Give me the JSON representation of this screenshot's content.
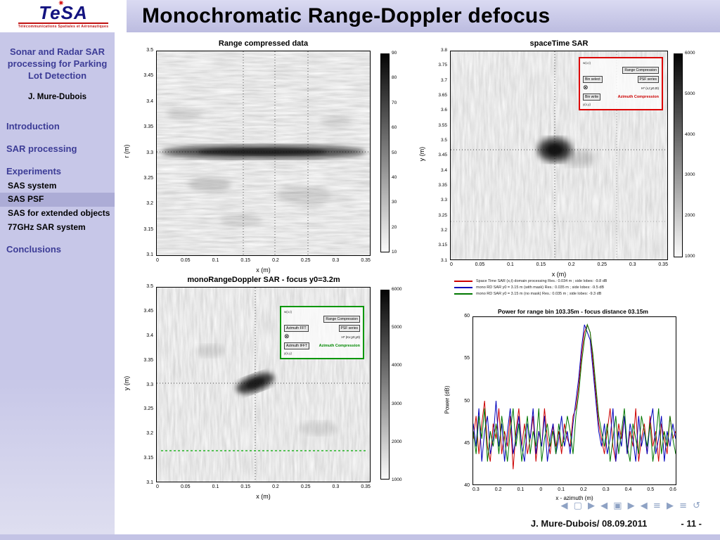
{
  "header": {
    "title": "Monochromatic Range-Doppler defocus"
  },
  "logo": {
    "name": "TeSA",
    "star": "✷",
    "tagline": "Télécommunications Spatiales et Aéronautiques"
  },
  "icons": {
    "otimes": "⊗",
    "arrow_down": "↓"
  },
  "sidebar": {
    "presentation_title": "Sonar and Radar SAR processing for Parking Lot Detection",
    "author": "J. Mure-Dubois",
    "nav": [
      {
        "label": "Introduction",
        "level": 1,
        "active": false
      },
      {
        "label": "SAR processing",
        "level": 1,
        "active": false
      },
      {
        "label": "Experiments",
        "level": 1,
        "active": false
      },
      {
        "label": "SAS system",
        "level": 2,
        "active": false
      },
      {
        "label": "SAS PSF",
        "level": 2,
        "active": true
      },
      {
        "label": "SAS for extended objects",
        "level": 2,
        "active": false
      },
      {
        "label": "77GHz SAR system",
        "level": 2,
        "active": false
      },
      {
        "label": "Conclusions",
        "level": 1,
        "active": false
      }
    ]
  },
  "footer": {
    "author_date": "J. Mure-Dubois/ 08.09.2011",
    "page": "- 11 -",
    "nav_symbols": "◀ ▢ ▶ ◀ ▣ ▶ ◀ ≡ ▶ ≡ ↺"
  },
  "plots": {
    "p1": {
      "title": "Range compressed data",
      "xlabel": "x (m)",
      "ylabel": "r (m)",
      "x_ticks": [
        "0",
        "0.05",
        "0.1",
        "0.15",
        "0.2",
        "0.25",
        "0.3",
        "0.35"
      ],
      "y_ticks": [
        "3.5",
        "3.45",
        "3.4",
        "3.35",
        "3.3",
        "3.25",
        "3.2",
        "3.15",
        "3.1"
      ],
      "cbar_ticks": [
        "90",
        "80",
        "70",
        "60",
        "50",
        "40",
        "30",
        "20",
        "10"
      ]
    },
    "p2": {
      "title": "spaceTime SAR",
      "xlabel": "x (m)",
      "ylabel": "y (m)",
      "x_ticks": [
        "0",
        "0.05",
        "0.1",
        "0.15",
        "0.2",
        "0.25",
        "0.3",
        "0.35"
      ],
      "y_ticks": [
        "3.8",
        "3.75",
        "3.7",
        "3.65",
        "3.6",
        "3.55",
        "3.5",
        "3.45",
        "3.4",
        "3.35",
        "3.3",
        "3.25",
        "3.2",
        "3.15",
        "3.1"
      ],
      "cbar_ticks": [
        "6000",
        "5000",
        "4000",
        "3000",
        "2000",
        "1000"
      ],
      "inset": {
        "input_label": "w(x,t)",
        "blocks": [
          "Range Compression",
          "Bin select",
          "PSF series",
          "H* (x,t;y0,t0)",
          "Bin write",
          "Azimuth Compression"
        ],
        "output_label": "y(x,y)"
      }
    },
    "p3": {
      "title": "monoRangeDoppler SAR - focus y0=3.2m",
      "xlabel": "x (m)",
      "ylabel": "y (m)",
      "x_ticks": [
        "0",
        "0.05",
        "0.1",
        "0.15",
        "0.2",
        "0.25",
        "0.3",
        "0.35"
      ],
      "y_ticks": [
        "3.5",
        "3.45",
        "3.4",
        "3.35",
        "3.3",
        "3.25",
        "3.2",
        "3.15",
        "3.1"
      ],
      "cbar_ticks": [
        "6000",
        "5000",
        "4000",
        "3000",
        "2000",
        "1000"
      ],
      "inset": {
        "input_label": "w(x,t)",
        "blocks": [
          "Range Compression",
          "Azimuth FFT",
          "PSF series",
          "H* (Kx;y0,y0)",
          "Azimuth IFFT",
          "Azimuth Compression"
        ],
        "output_label": "y(x,y)"
      }
    },
    "p4": {
      "title": "Power for range bin 103.35m - focus distance 03.15m",
      "xlabel": "x - azimuth (m)",
      "ylabel": "Power (dB)",
      "x_ticks": [
        "0.3",
        "0.2",
        "0.1",
        "0",
        "0.1",
        "0.2",
        "0.3",
        "0.4",
        "0.5",
        "0.6"
      ],
      "y_ticks": [
        "60",
        "55",
        "50",
        "45",
        "40"
      ],
      "legend": [
        {
          "color": "#cc0000",
          "text": "Space Time SAR (x,t) domain processing    Res.: 0.034 m ; side lobes: -9.8 dB"
        },
        {
          "color": "#0000bb",
          "text": "mono RD SAR y0 = 3.15 m (with mask)    Res.: 0.035 m ; side lobes: -9.5 dB"
        },
        {
          "color": "#007700",
          "text": "mono RD SAR y0 = 3.15 m (no mask)    Res.: 0.035 m ; side lobes: -9.3 dB"
        }
      ]
    }
  },
  "chart_data": [
    {
      "type": "heatmap",
      "title": "Range compressed data",
      "xlabel": "x (m)",
      "ylabel": "r (m)",
      "xlim": [
        0,
        0.35
      ],
      "ylim": [
        3.1,
        3.5
      ],
      "colormap": "gray reversed (dark = high)",
      "colorbar_ticks": [
        90,
        80,
        70,
        60,
        50,
        40,
        30,
        20,
        10
      ],
      "feature": "dark horizontal return band at r ≈ 3.3 m spanning the full x range over light speckle noise"
    },
    {
      "type": "heatmap",
      "title": "spaceTime SAR",
      "xlabel": "x (m)",
      "ylabel": "y (m)",
      "xlim": [
        0,
        0.35
      ],
      "ylim": [
        3.1,
        3.8
      ],
      "colormap": "gray reversed (dark = high)",
      "colorbar_ticks": [
        6000,
        5000,
        4000,
        3000,
        2000,
        1000
      ],
      "feature": "focused point target at x ≈ 0.15 m, y ≈ 3.45 m with dotted crosshair"
    },
    {
      "type": "heatmap",
      "title": "monoRangeDoppler SAR - focus y0=3.2m",
      "xlabel": "x (m)",
      "ylabel": "y (m)",
      "xlim": [
        0,
        0.35
      ],
      "ylim": [
        3.1,
        3.5
      ],
      "colormap": "gray reversed (dark = high)",
      "colorbar_ticks": [
        6000,
        5000,
        4000,
        3000,
        2000,
        1000
      ],
      "feature": "defocused diagonally smeared target at x ≈ 0.15 m, y ≈ 3.3 m; green dashed marker line near y = 3.15"
    },
    {
      "type": "line",
      "title": "Power for range bin 103.35m - focus distance 03.15m",
      "xlabel": "x - azimuth (m)",
      "ylabel": "Power (dB)",
      "ylim": [
        40,
        62
      ],
      "x_tick_labels": [
        "0.3",
        "0.2",
        "0.1",
        "0",
        "0.1",
        "0.2",
        "0.3",
        "0.4",
        "0.5",
        "0.6"
      ],
      "y_tick_labels": [
        60,
        55,
        50,
        45,
        40
      ],
      "grid": false,
      "legend_position": "above plot",
      "series": [
        {
          "name": "Space Time SAR",
          "color": "#cc0000",
          "values": [
            46,
            49,
            44,
            48,
            51,
            45,
            43,
            48,
            46,
            50,
            44,
            47,
            45,
            49,
            42,
            47,
            50,
            45,
            48,
            44,
            46,
            49,
            43,
            47,
            45,
            50,
            46,
            44,
            48,
            45,
            47,
            44,
            48,
            46,
            45,
            49,
            50,
            53,
            57,
            60,
            61,
            60,
            56,
            52,
            48,
            46,
            44,
            47,
            50,
            45,
            43,
            48,
            46,
            49,
            44,
            47,
            45,
            50,
            43,
            46,
            48,
            44,
            49,
            45,
            47,
            43,
            48,
            46,
            44,
            49,
            46,
            47
          ]
        },
        {
          "name": "mono RD SAR with mask",
          "color": "#0000bb",
          "values": [
            48,
            45,
            50,
            43,
            47,
            49,
            44,
            46,
            51,
            45,
            48,
            43,
            47,
            50,
            44,
            46,
            49,
            45,
            43,
            48,
            46,
            50,
            44,
            47,
            45,
            49,
            43,
            46,
            48,
            44,
            46,
            49,
            45,
            47,
            44,
            48,
            51,
            54,
            58,
            61,
            60,
            59,
            55,
            51,
            47,
            45,
            48,
            44,
            46,
            50,
            43,
            47,
            45,
            49,
            44,
            48,
            46,
            43,
            49,
            45,
            47,
            44,
            48,
            50,
            44,
            46,
            49,
            43,
            47,
            45,
            48,
            46
          ]
        },
        {
          "name": "mono RD SAR no mask",
          "color": "#007700",
          "values": [
            47,
            44,
            49,
            46,
            50,
            43,
            47,
            45,
            48,
            44,
            49,
            46,
            43,
            47,
            50,
            45,
            48,
            43,
            46,
            49,
            44,
            47,
            45,
            50,
            43,
            46,
            48,
            45,
            47,
            44,
            48,
            45,
            46,
            49,
            47,
            44,
            49,
            52,
            56,
            59,
            61,
            60,
            57,
            53,
            49,
            47,
            45,
            48,
            43,
            46,
            49,
            44,
            47,
            50,
            45,
            43,
            48,
            46,
            44,
            49,
            47,
            45,
            48,
            43,
            46,
            50,
            44,
            47,
            45,
            49,
            46,
            44
          ]
        }
      ]
    }
  ]
}
